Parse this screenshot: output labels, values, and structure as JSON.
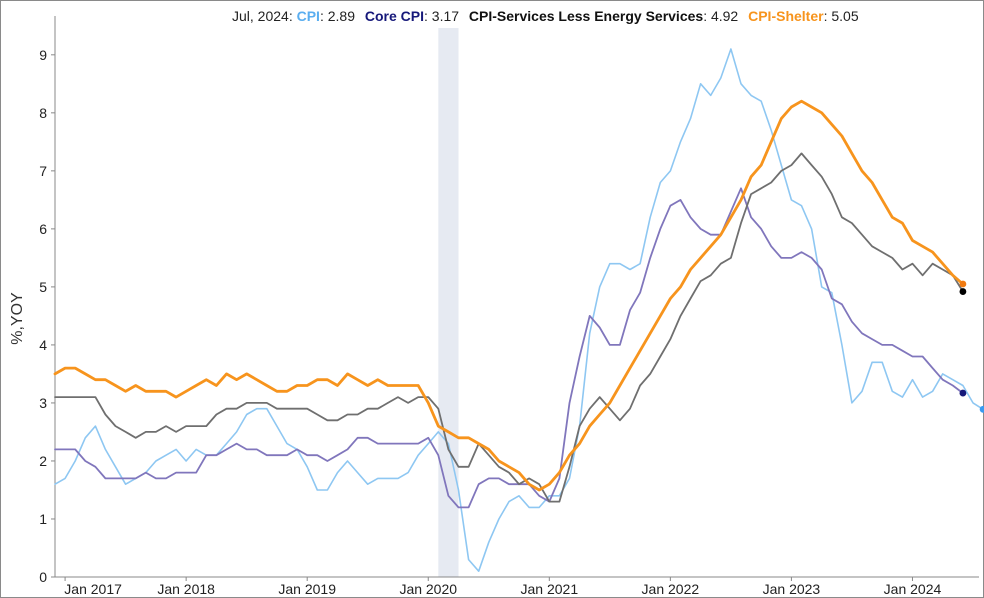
{
  "legend": {
    "date": "Jul, 2024:",
    "items": [
      {
        "label": "CPI",
        "value": "2.89",
        "color": "#5aaef0"
      },
      {
        "label": "Core CPI",
        "value": "3.17",
        "color": "#16187a"
      },
      {
        "label": "CPI-Services Less Energy Services",
        "value": "4.92",
        "color": "#111111"
      },
      {
        "label": "CPI-Shelter",
        "value": "5.05",
        "color": "#f7941d"
      }
    ]
  },
  "chart_data": {
    "type": "line",
    "ylabel": "%,YOY",
    "ylim": [
      0,
      9.6
    ],
    "yticks": [
      0,
      1,
      2,
      3,
      4,
      5,
      6,
      7,
      8,
      9
    ],
    "xticks": [
      "Jan 2017",
      "Jan 2018",
      "Jan 2019",
      "Jan 2020",
      "Jan 2021",
      "Jan 2022",
      "Jan 2023",
      "Jan 2024"
    ],
    "x_start": "Dec 2016",
    "x_end": "Jul 2024",
    "shaded_region": {
      "from": "Feb 2020",
      "to": "Apr 2020"
    },
    "grid": false,
    "series": [
      {
        "name": "CPI",
        "color": "#8ec7f2",
        "end_marker_color": "#3a9af0",
        "values": [
          1.6,
          1.7,
          2.0,
          2.4,
          2.6,
          2.2,
          1.9,
          1.6,
          1.7,
          1.8,
          2.0,
          2.1,
          2.2,
          2.0,
          2.2,
          2.1,
          2.1,
          2.3,
          2.5,
          2.8,
          2.9,
          2.9,
          2.6,
          2.3,
          2.2,
          1.9,
          1.5,
          1.5,
          1.8,
          2.0,
          1.8,
          1.6,
          1.7,
          1.7,
          1.7,
          1.8,
          2.1,
          2.3,
          2.5,
          2.3,
          1.5,
          0.3,
          0.1,
          0.6,
          1.0,
          1.3,
          1.4,
          1.2,
          1.2,
          1.4,
          1.4,
          1.7,
          2.6,
          4.2,
          5.0,
          5.4,
          5.4,
          5.3,
          5.4,
          6.2,
          6.8,
          7.0,
          7.5,
          7.9,
          8.5,
          8.3,
          8.6,
          9.1,
          8.5,
          8.3,
          8.2,
          7.7,
          7.1,
          6.5,
          6.4,
          6.0,
          5.0,
          4.9,
          4.0,
          3.0,
          3.2,
          3.7,
          3.7,
          3.2,
          3.1,
          3.4,
          3.1,
          3.2,
          3.5,
          3.4,
          3.3,
          3.0,
          2.89
        ]
      },
      {
        "name": "Core CPI",
        "color": "#8076bc",
        "end_marker_color": "#16187a",
        "values": [
          2.2,
          2.2,
          2.2,
          2.0,
          1.9,
          1.7,
          1.7,
          1.7,
          1.7,
          1.8,
          1.7,
          1.7,
          1.8,
          1.8,
          1.8,
          2.1,
          2.1,
          2.2,
          2.3,
          2.2,
          2.2,
          2.1,
          2.1,
          2.1,
          2.2,
          2.1,
          2.1,
          2.0,
          2.1,
          2.2,
          2.4,
          2.4,
          2.3,
          2.3,
          2.3,
          2.3,
          2.3,
          2.4,
          2.1,
          1.4,
          1.2,
          1.2,
          1.6,
          1.7,
          1.7,
          1.6,
          1.6,
          1.6,
          1.4,
          1.3,
          1.7,
          3.0,
          3.8,
          4.5,
          4.3,
          4.0,
          4.0,
          4.6,
          4.9,
          5.5,
          6.0,
          6.4,
          6.5,
          6.2,
          6.0,
          5.9,
          5.9,
          6.3,
          6.7,
          6.2,
          6.0,
          5.7,
          5.5,
          5.5,
          5.6,
          5.5,
          5.3,
          4.8,
          4.7,
          4.4,
          4.2,
          4.1,
          4.0,
          4.0,
          3.9,
          3.8,
          3.8,
          3.6,
          3.4,
          3.3,
          3.17
        ]
      },
      {
        "name": "CPI-Services Less Energy Services",
        "color": "#6f6f6f",
        "end_marker_color": "#000000",
        "values": [
          3.1,
          3.1,
          3.1,
          3.1,
          3.1,
          2.8,
          2.6,
          2.5,
          2.4,
          2.5,
          2.5,
          2.6,
          2.5,
          2.6,
          2.6,
          2.6,
          2.8,
          2.9,
          2.9,
          3.0,
          3.0,
          3.0,
          2.9,
          2.9,
          2.9,
          2.9,
          2.8,
          2.7,
          2.7,
          2.8,
          2.8,
          2.9,
          2.9,
          3.0,
          3.1,
          3.0,
          3.1,
          3.1,
          2.9,
          2.2,
          1.9,
          1.9,
          2.3,
          2.1,
          1.9,
          1.8,
          1.6,
          1.7,
          1.6,
          1.3,
          1.3,
          1.9,
          2.6,
          2.9,
          3.1,
          2.9,
          2.7,
          2.9,
          3.3,
          3.5,
          3.8,
          4.1,
          4.5,
          4.8,
          5.1,
          5.2,
          5.4,
          5.5,
          6.1,
          6.6,
          6.7,
          6.8,
          7.0,
          7.1,
          7.3,
          7.1,
          6.9,
          6.6,
          6.2,
          6.1,
          5.9,
          5.7,
          5.6,
          5.5,
          5.3,
          5.4,
          5.2,
          5.4,
          5.3,
          5.2,
          4.92
        ]
      },
      {
        "name": "CPI-Shelter",
        "color": "#f7941d",
        "end_marker_color": "#f07a10",
        "values": [
          3.5,
          3.6,
          3.6,
          3.5,
          3.4,
          3.4,
          3.3,
          3.2,
          3.3,
          3.2,
          3.2,
          3.2,
          3.1,
          3.2,
          3.3,
          3.4,
          3.3,
          3.5,
          3.4,
          3.5,
          3.4,
          3.3,
          3.2,
          3.2,
          3.3,
          3.3,
          3.4,
          3.4,
          3.3,
          3.5,
          3.4,
          3.3,
          3.4,
          3.3,
          3.3,
          3.3,
          3.3,
          3.0,
          2.6,
          2.5,
          2.4,
          2.4,
          2.3,
          2.2,
          2.0,
          1.9,
          1.8,
          1.6,
          1.5,
          1.6,
          1.8,
          2.1,
          2.3,
          2.6,
          2.8,
          3.0,
          3.3,
          3.6,
          3.9,
          4.2,
          4.5,
          4.8,
          5.0,
          5.3,
          5.5,
          5.7,
          5.9,
          6.2,
          6.5,
          6.9,
          7.1,
          7.5,
          7.9,
          8.1,
          8.2,
          8.1,
          8.0,
          7.8,
          7.6,
          7.3,
          7.0,
          6.8,
          6.5,
          6.2,
          6.1,
          5.8,
          5.7,
          5.6,
          5.4,
          5.2,
          5.05
        ]
      }
    ]
  }
}
